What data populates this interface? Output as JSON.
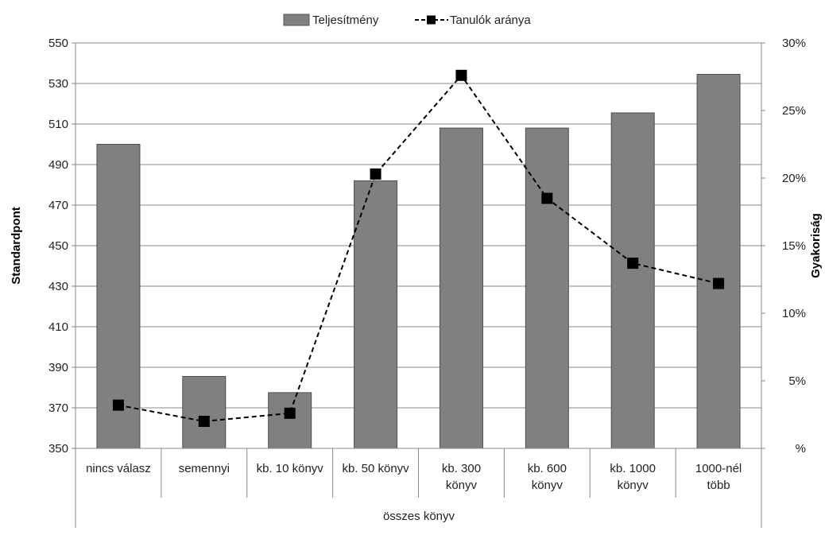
{
  "chart_data": {
    "type": "bar",
    "categories": [
      [
        "nincs válasz"
      ],
      [
        "semennyi"
      ],
      [
        "kb. 10 könyv"
      ],
      [
        "kb. 50 könyv"
      ],
      [
        "kb. 300",
        "könyv"
      ],
      [
        "kb. 600",
        "könyv"
      ],
      [
        "kb. 1000",
        "könyv"
      ],
      [
        "1000-nél",
        "több"
      ]
    ],
    "group_label": "összes könyv",
    "series": [
      {
        "name": "Teljesítmény",
        "type": "bar",
        "axis": "left",
        "color": "#808080",
        "values": [
          500,
          385.5,
          377.5,
          482,
          508,
          508,
          515.5,
          534.5
        ]
      },
      {
        "name": "Tanulók aránya",
        "type": "line",
        "axis": "right",
        "color": "#000000",
        "style": "dashed",
        "marker": "square",
        "values": [
          3.2,
          2.0,
          2.6,
          20.3,
          27.6,
          18.5,
          13.7,
          12.2
        ]
      }
    ],
    "ylabel": "Standardpont",
    "ylim": [
      350,
      550
    ],
    "yticks": [
      350,
      370,
      390,
      410,
      430,
      450,
      470,
      490,
      510,
      530,
      550
    ],
    "y2label": "Gyakoriság",
    "y2lim": [
      0,
      30
    ],
    "y2ticks": [
      "%",
      "5%",
      "10%",
      "15%",
      "20%",
      "25%",
      "30%"
    ],
    "grid": true,
    "legend": "top-center"
  }
}
